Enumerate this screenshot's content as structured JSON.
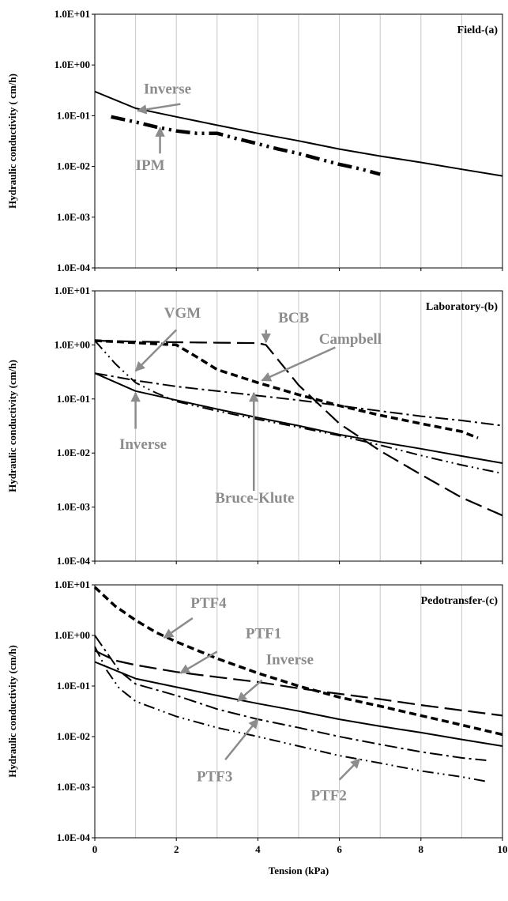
{
  "chart_data": {
    "type": "line",
    "xlabel": "Tension (kPa)",
    "x_ticks": [
      "0",
      "2",
      "4",
      "6",
      "8",
      "10"
    ],
    "xlim": [
      0,
      10
    ],
    "y_scale": "log",
    "ylim": [
      0.0001,
      10
    ],
    "y_ticks": [
      "1.0E+01",
      "1.0E+00",
      "1.0E-01",
      "1.0E-02",
      "1.0E-03",
      "1.0E-04"
    ],
    "grid": "vertical",
    "colors": {
      "series": "#000000",
      "annotation": "#8c8c8c",
      "grid": "#c8c8c8"
    },
    "panels": [
      {
        "title": "Field-(a)",
        "ylabel": "Hydraulic conductivity ( cm/h)",
        "series": [
          {
            "name": "Inverse",
            "style": "solid",
            "x": [
              0,
              1,
              2,
              3,
              4,
              5,
              6,
              7,
              8,
              9,
              10
            ],
            "y": [
              0.3,
              0.14,
              0.095,
              0.065,
              0.045,
              0.032,
              0.022,
              0.016,
              0.012,
              0.0088,
              0.0065
            ]
          },
          {
            "name": "IPM",
            "style": "dash-dot-dot-thick",
            "x": [
              0.4,
              1,
              1.5,
              2,
              2.5,
              3,
              3.5,
              4,
              4.5,
              5,
              5.5,
              6,
              6.5,
              7
            ],
            "y": [
              0.095,
              0.075,
              0.06,
              0.05,
              0.045,
              0.045,
              0.035,
              0.028,
              0.022,
              0.018,
              0.014,
              0.011,
              0.009,
              0.007
            ]
          }
        ],
        "annotations": [
          {
            "text": "Inverse",
            "label_x": 1.2,
            "label_y": 0.27,
            "arrow_from": [
              2.1,
              0.17
            ],
            "arrow_to": [
              1.05,
              0.125
            ]
          },
          {
            "text": "IPM",
            "label_x": 1.0,
            "label_y": 0.0085,
            "arrow_from": [
              1.6,
              0.018
            ],
            "arrow_to": [
              1.6,
              0.058
            ]
          }
        ]
      },
      {
        "title": "Laboratory-(b)",
        "ylabel": "Hydraulic conductivity (cm/h)",
        "series": [
          {
            "name": "Inverse",
            "style": "solid",
            "x": [
              0,
              1,
              2,
              3,
              4,
              5,
              6,
              7,
              8,
              9,
              10
            ],
            "y": [
              0.3,
              0.14,
              0.095,
              0.065,
              0.045,
              0.032,
              0.022,
              0.016,
              0.012,
              0.0088,
              0.0065
            ]
          },
          {
            "name": "VGM",
            "style": "dash-dot-dot",
            "x": [
              0,
              0.5,
              1,
              1.5,
              2,
              3,
              4,
              5,
              6,
              7,
              8,
              9,
              10
            ],
            "y": [
              1.2,
              0.45,
              0.2,
              0.13,
              0.09,
              0.06,
              0.042,
              0.03,
              0.021,
              0.014,
              0.009,
              0.006,
              0.0042
            ]
          },
          {
            "name": "BCB",
            "style": "long-dash",
            "x": [
              0,
              1,
              2,
              3,
              4,
              4.2,
              5,
              6,
              7,
              8,
              9,
              10
            ],
            "y": [
              1.2,
              1.15,
              1.12,
              1.1,
              1.08,
              1.0,
              0.18,
              0.035,
              0.011,
              0.004,
              0.0015,
              0.0007
            ]
          },
          {
            "name": "Campbell",
            "style": "short-dash-thick",
            "x": [
              0,
              1,
              2,
              2.5,
              3,
              4,
              5,
              6,
              7,
              8,
              9,
              9.4
            ],
            "y": [
              1.2,
              1.1,
              1.0,
              0.6,
              0.35,
              0.2,
              0.12,
              0.075,
              0.05,
              0.035,
              0.025,
              0.019
            ]
          },
          {
            "name": "Bruce-Klute",
            "style": "dash-dot",
            "x": [
              0,
              1,
              2,
              3,
              4,
              5,
              6,
              7,
              8,
              9,
              10
            ],
            "y": [
              0.3,
              0.22,
              0.17,
              0.14,
              0.115,
              0.095,
              0.075,
              0.06,
              0.048,
              0.04,
              0.032
            ]
          }
        ],
        "annotations": [
          {
            "text": "VGM",
            "label_x": 1.7,
            "label_y": 3.2,
            "arrow_from": [
              2.0,
              1.9
            ],
            "arrow_to": [
              1.0,
              0.33
            ]
          },
          {
            "text": "BCB",
            "label_x": 4.5,
            "label_y": 2.6,
            "arrow_from": [
              4.2,
              1.9
            ],
            "arrow_to": [
              4.2,
              1.12
            ]
          },
          {
            "text": "Campbell",
            "label_x": 5.5,
            "label_y": 1.05,
            "arrow_from": [
              5.9,
              0.9
            ],
            "arrow_to": [
              4.1,
              0.22
            ]
          },
          {
            "text": "Inverse",
            "label_x": 0.6,
            "label_y": 0.012,
            "arrow_from": [
              1.0,
              0.028
            ],
            "arrow_to": [
              1.0,
              0.13
            ]
          },
          {
            "text": "Bruce-Klute",
            "label_x": 2.95,
            "label_y": 0.0012,
            "arrow_from": [
              3.9,
              0.002
            ],
            "arrow_to": [
              3.9,
              0.13
            ]
          }
        ]
      },
      {
        "title": "Pedotransfer-(c)",
        "ylabel": "Hydraulic conductivity (cm/h)",
        "series": [
          {
            "name": "Inverse",
            "style": "solid",
            "x": [
              0,
              1,
              2,
              3,
              4,
              5,
              6,
              7,
              8,
              9,
              10
            ],
            "y": [
              0.3,
              0.14,
              0.095,
              0.065,
              0.045,
              0.032,
              0.022,
              0.016,
              0.012,
              0.0088,
              0.0065
            ]
          },
          {
            "name": "PTF4",
            "style": "short-dash-thick",
            "x": [
              0,
              0.5,
              1,
              1.5,
              2,
              3,
              4,
              5,
              6,
              7,
              8,
              9,
              10
            ],
            "y": [
              9.0,
              3.8,
              2.0,
              1.15,
              0.75,
              0.35,
              0.18,
              0.1,
              0.06,
              0.04,
              0.026,
              0.017,
              0.011
            ]
          },
          {
            "name": "PTF1",
            "style": "long-dash",
            "x": [
              0,
              0.5,
              1,
              2,
              3,
              4,
              5,
              6,
              7,
              8,
              9,
              10
            ],
            "y": [
              0.5,
              0.32,
              0.26,
              0.19,
              0.15,
              0.12,
              0.09,
              0.07,
              0.055,
              0.042,
              0.033,
              0.026
            ]
          },
          {
            "name": "PTF3",
            "style": "dash-dot",
            "x": [
              0,
              0.3,
              0.6,
              1,
              2,
              3,
              4,
              5,
              6,
              7,
              8,
              9,
              9.6
            ],
            "y": [
              1.0,
              0.45,
              0.2,
              0.11,
              0.065,
              0.035,
              0.022,
              0.015,
              0.01,
              0.007,
              0.005,
              0.0038,
              0.0034
            ]
          },
          {
            "name": "PTF2",
            "style": "dash-dot-dot",
            "x": [
              0,
              0.3,
              0.6,
              1,
              2,
              3,
              4,
              5,
              6,
              7,
              8,
              9,
              9.6
            ],
            "y": [
              0.6,
              0.2,
              0.09,
              0.05,
              0.025,
              0.015,
              0.01,
              0.0065,
              0.0042,
              0.003,
              0.0021,
              0.0016,
              0.0013
            ]
          }
        ],
        "annotations": [
          {
            "text": "PTF4",
            "label_x": 2.35,
            "label_y": 3.5,
            "arrow_from": [
              2.4,
              2.2
            ],
            "arrow_to": [
              1.7,
              0.9
            ]
          },
          {
            "text": "PTF1",
            "label_x": 3.7,
            "label_y": 0.88,
            "arrow_from": [
              3.0,
              0.48
            ],
            "arrow_to": [
              2.1,
              0.18
            ]
          },
          {
            "text": "Inverse",
            "label_x": 4.2,
            "label_y": 0.27,
            "arrow_from": [
              4.1,
              0.13
            ],
            "arrow_to": [
              3.5,
              0.05
            ]
          },
          {
            "text": "PTF3",
            "label_x": 2.5,
            "label_y": 0.0013,
            "arrow_from": [
              3.2,
              0.0035
            ],
            "arrow_to": [
              4.0,
              0.022
            ]
          },
          {
            "text": "PTF2",
            "label_x": 5.3,
            "label_y": 0.00055,
            "arrow_from": [
              6.0,
              0.0014
            ],
            "arrow_to": [
              6.5,
              0.0036
            ]
          }
        ]
      }
    ]
  }
}
